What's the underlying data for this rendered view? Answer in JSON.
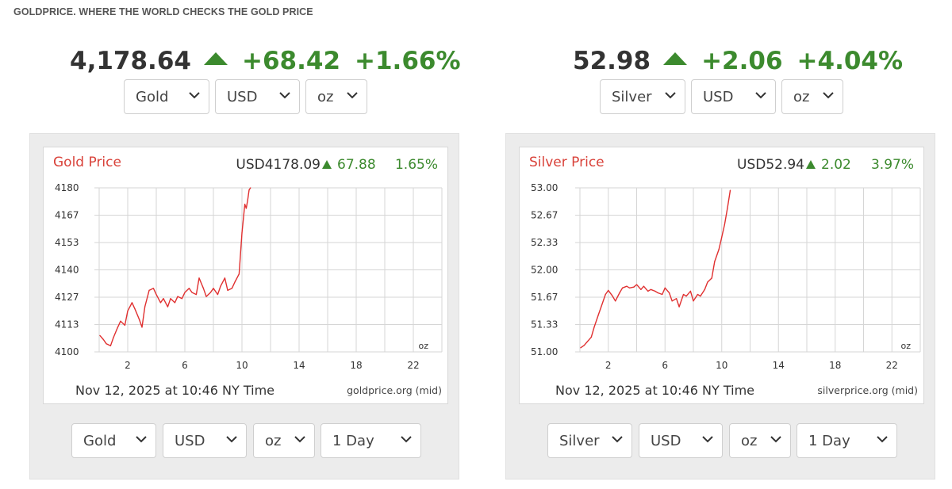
{
  "site": {
    "title": "GOLDPRICE. WHERE THE WORLD CHECKS THE GOLD PRICE"
  },
  "gold": {
    "headline": {
      "price": "4,178.64",
      "change": "+68.42",
      "percent": "+1.66%"
    },
    "top_selects": {
      "metal": "Gold",
      "currency": "USD",
      "unit": "oz"
    },
    "chart_header": {
      "title": "Gold Price",
      "quote": "USD4178.09",
      "change": "67.88",
      "percent": "1.65%"
    },
    "chart_footer": {
      "date": "Nov 12, 2025 at 10:46 NY Time",
      "source": "goldprice.org (mid)",
      "unit": "oz"
    },
    "bottom_selects": {
      "metal": "Gold",
      "currency": "USD",
      "unit": "oz",
      "range": "1 Day"
    }
  },
  "silver": {
    "headline": {
      "price": "52.98",
      "change": "+2.06",
      "percent": "+4.04%"
    },
    "top_selects": {
      "metal": "Silver",
      "currency": "USD",
      "unit": "oz"
    },
    "chart_header": {
      "title": "Silver Price",
      "quote": "USD52.94",
      "change": "2.02",
      "percent": "3.97%"
    },
    "chart_footer": {
      "date": "Nov 12, 2025 at 10:46 NY Time",
      "source": "silverprice.org (mid)",
      "unit": "oz"
    },
    "bottom_selects": {
      "metal": "Silver",
      "currency": "USD",
      "unit": "oz",
      "range": "1 Day"
    }
  },
  "colors": {
    "up_green": "#3c8a2e",
    "chart_title_red": "#d9423a",
    "line_red": "#e03030"
  },
  "chart_data": [
    {
      "type": "line",
      "title": "Gold Price",
      "xticks": [
        2,
        6,
        10,
        14,
        18,
        22
      ],
      "xlim": [
        0,
        24
      ],
      "yticks": [
        "4100",
        "4113",
        "4127",
        "4140",
        "4153",
        "4167",
        "4180"
      ],
      "ylim": [
        4100,
        4180
      ],
      "grid": true,
      "series": [
        {
          "x": [
            0.05,
            0.3,
            0.5,
            0.8,
            1.0,
            1.3,
            1.5,
            1.8,
            2.0,
            2.3,
            2.5,
            2.8,
            3.0,
            3.2,
            3.5,
            3.8,
            4.0,
            4.3,
            4.5,
            4.8,
            5.0,
            5.3,
            5.5,
            5.8,
            6.0,
            6.3,
            6.5,
            6.8,
            7.0,
            7.3,
            7.5,
            7.8,
            8.0,
            8.3,
            8.5,
            8.8,
            9.0,
            9.3,
            9.5,
            9.8,
            10.0,
            10.1,
            10.2,
            10.3,
            10.4,
            10.5,
            10.6
          ],
          "y": [
            4108,
            4106,
            4104,
            4103,
            4107,
            4112,
            4115,
            4113,
            4120,
            4124,
            4121,
            4116,
            4112,
            4122,
            4130,
            4131,
            4128,
            4124,
            4126,
            4122,
            4126,
            4124,
            4127,
            4126,
            4129,
            4131,
            4129,
            4128,
            4136,
            4131,
            4127,
            4129,
            4131,
            4128,
            4132,
            4136,
            4130,
            4131,
            4134,
            4138,
            4158,
            4165,
            4172,
            4170,
            4174,
            4179,
            4180
          ]
        }
      ]
    },
    {
      "type": "line",
      "title": "Silver Price",
      "xticks": [
        2,
        6,
        10,
        14,
        18,
        22
      ],
      "xlim": [
        0,
        24
      ],
      "yticks": [
        "51.00",
        "51.33",
        "51.67",
        "52.00",
        "52.33",
        "52.67",
        "53.00"
      ],
      "ylim": [
        51.0,
        53.0
      ],
      "grid": true,
      "series": [
        {
          "x": [
            0.05,
            0.3,
            0.5,
            0.8,
            1.0,
            1.3,
            1.5,
            1.8,
            2.0,
            2.3,
            2.5,
            2.8,
            3.0,
            3.3,
            3.5,
            3.8,
            4.0,
            4.3,
            4.5,
            4.8,
            5.0,
            5.3,
            5.5,
            5.8,
            6.0,
            6.3,
            6.5,
            6.8,
            7.0,
            7.3,
            7.5,
            7.8,
            8.0,
            8.3,
            8.5,
            8.8,
            9.0,
            9.3,
            9.5,
            9.8,
            10.0,
            10.2,
            10.4,
            10.6
          ],
          "y": [
            51.05,
            51.08,
            51.12,
            51.18,
            51.3,
            51.45,
            51.55,
            51.7,
            51.75,
            51.68,
            51.62,
            51.72,
            51.78,
            51.8,
            51.78,
            51.79,
            51.82,
            51.76,
            51.8,
            51.74,
            51.76,
            51.74,
            51.72,
            51.7,
            51.78,
            51.72,
            51.62,
            51.65,
            51.55,
            51.7,
            51.68,
            51.74,
            51.62,
            51.7,
            51.68,
            51.76,
            51.85,
            51.9,
            52.1,
            52.25,
            52.4,
            52.55,
            52.75,
            52.97
          ]
        }
      ]
    }
  ]
}
